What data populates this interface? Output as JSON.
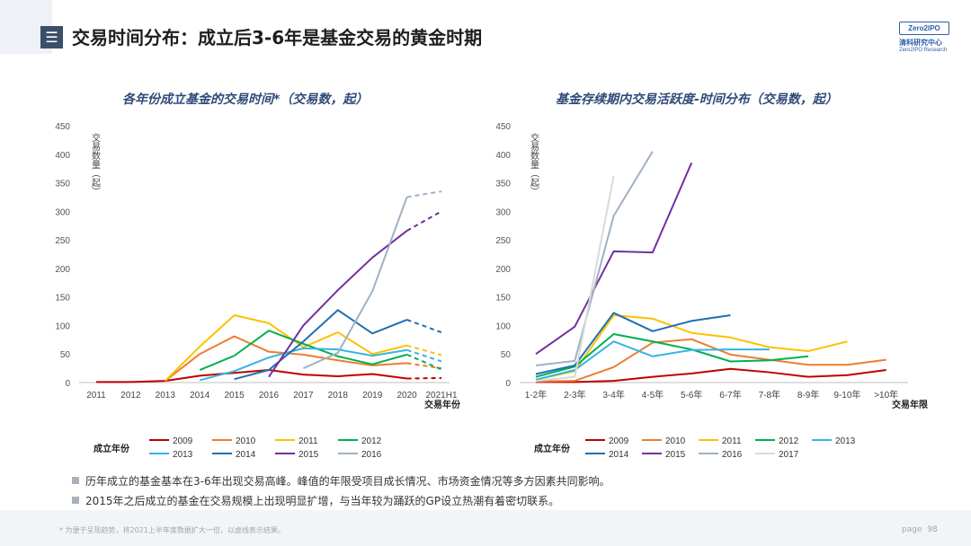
{
  "header": {
    "menu_icon": "menu-icon",
    "title": "交易时间分布：成立后3-6年是基金交易的黄金时期",
    "logo": {
      "badge": "Zero2IPO",
      "cn": "清科研究中心",
      "en": "Zero2IPO Research"
    }
  },
  "colors": {
    "title_text": "#2f4b78",
    "2009": "#c00000",
    "2010": "#ed7d31",
    "2011": "#ffc000",
    "2012": "#00b050",
    "2013": "#33b5e5",
    "2014": "#1f6fb2",
    "2015": "#7030a0",
    "2016": "#9fb0c4",
    "2017": "#d9d9d9"
  },
  "chart_data": [
    {
      "type": "line",
      "title": "各年份成立基金的交易时间*（交易数，起）",
      "ylabel": "交易数量（起）",
      "xlabel": "交易年份",
      "ylim": [
        0,
        450
      ],
      "yticks": [
        0,
        50,
        100,
        150,
        200,
        250,
        300,
        350,
        400,
        450
      ],
      "categories": [
        "2011",
        "2012",
        "2013",
        "2014",
        "2015",
        "2016",
        "2017",
        "2018",
        "2019",
        "2020",
        "2021H1"
      ],
      "dashed_last_segment": true,
      "legend_title": "成立年份",
      "series": [
        {
          "name": "2009",
          "values": [
            1,
            1,
            3,
            12,
            17,
            22,
            14,
            11,
            15,
            7,
            8
          ]
        },
        {
          "name": "2010",
          "values": [
            null,
            null,
            3,
            50,
            81,
            54,
            49,
            39,
            30,
            34,
            25
          ]
        },
        {
          "name": "2011",
          "values": [
            null,
            null,
            3,
            63,
            118,
            104,
            62,
            88,
            50,
            65,
            48
          ]
        },
        {
          "name": "2012",
          "values": [
            null,
            null,
            null,
            22,
            47,
            91,
            68,
            46,
            32,
            49,
            23
          ]
        },
        {
          "name": "2013",
          "values": [
            null,
            null,
            null,
            4,
            20,
            44,
            60,
            58,
            47,
            57,
            37
          ]
        },
        {
          "name": "2014",
          "values": [
            null,
            null,
            null,
            null,
            6,
            22,
            72,
            127,
            86,
            110,
            88
          ]
        },
        {
          "name": "2015",
          "values": [
            null,
            null,
            null,
            null,
            null,
            10,
            100,
            162,
            219,
            266,
            300
          ]
        },
        {
          "name": "2016",
          "values": [
            null,
            null,
            null,
            null,
            null,
            null,
            25,
            52,
            160,
            325,
            335
          ]
        }
      ]
    },
    {
      "type": "line",
      "title": "基金存续期内交易活跃度-时间分布（交易数，起）",
      "ylabel": "交易数量（起）",
      "xlabel": "交易年限",
      "ylim": [
        0,
        450
      ],
      "yticks": [
        0,
        50,
        100,
        150,
        200,
        250,
        300,
        350,
        400,
        450
      ],
      "categories": [
        "1-2年",
        "2-3年",
        "3-4年",
        "4-5年",
        "5-6年",
        "6-7年",
        "7-8年",
        "8-9年",
        "9-10年",
        ">10年"
      ],
      "legend_title": "成立年份",
      "series": [
        {
          "name": "2009",
          "values": [
            1,
            1,
            3,
            10,
            16,
            24,
            18,
            10,
            13,
            22
          ]
        },
        {
          "name": "2010",
          "values": [
            2,
            3,
            27,
            70,
            76,
            49,
            40,
            31,
            31,
            40
          ]
        },
        {
          "name": "2011",
          "values": [
            5,
            20,
            118,
            112,
            87,
            79,
            62,
            55,
            72,
            null
          ]
        },
        {
          "name": "2012",
          "values": [
            10,
            28,
            85,
            72,
            58,
            37,
            39,
            46,
            null,
            null
          ]
        },
        {
          "name": "2013",
          "values": [
            5,
            22,
            72,
            46,
            57,
            58,
            58,
            null,
            null,
            null
          ]
        },
        {
          "name": "2014",
          "values": [
            15,
            30,
            122,
            90,
            108,
            118,
            null,
            null,
            null,
            null
          ]
        },
        {
          "name": "2015",
          "values": [
            50,
            98,
            230,
            228,
            385,
            null,
            null,
            null,
            null,
            null
          ]
        },
        {
          "name": "2016",
          "values": [
            30,
            38,
            292,
            405,
            null,
            null,
            null,
            null,
            null,
            null
          ]
        },
        {
          "name": "2017",
          "values": [
            3,
            10,
            362,
            null,
            null,
            null,
            null,
            null,
            null,
            null
          ]
        }
      ]
    }
  ],
  "bullets": [
    "历年成立的基金基本在3-6年出现交易高峰。峰值的年限受项目成长情况、市场资金情况等多方因素共同影响。",
    "2015年之后成立的基金在交易规模上出现明显扩增，与当年较为踊跃的GP设立热潮有着密切联系。"
  ],
  "footer": {
    "note": "* 为便于呈现趋势，将2021上半年度数据扩大一倍，以虚线表示结果。",
    "page_label": "page",
    "page_number": "98"
  }
}
